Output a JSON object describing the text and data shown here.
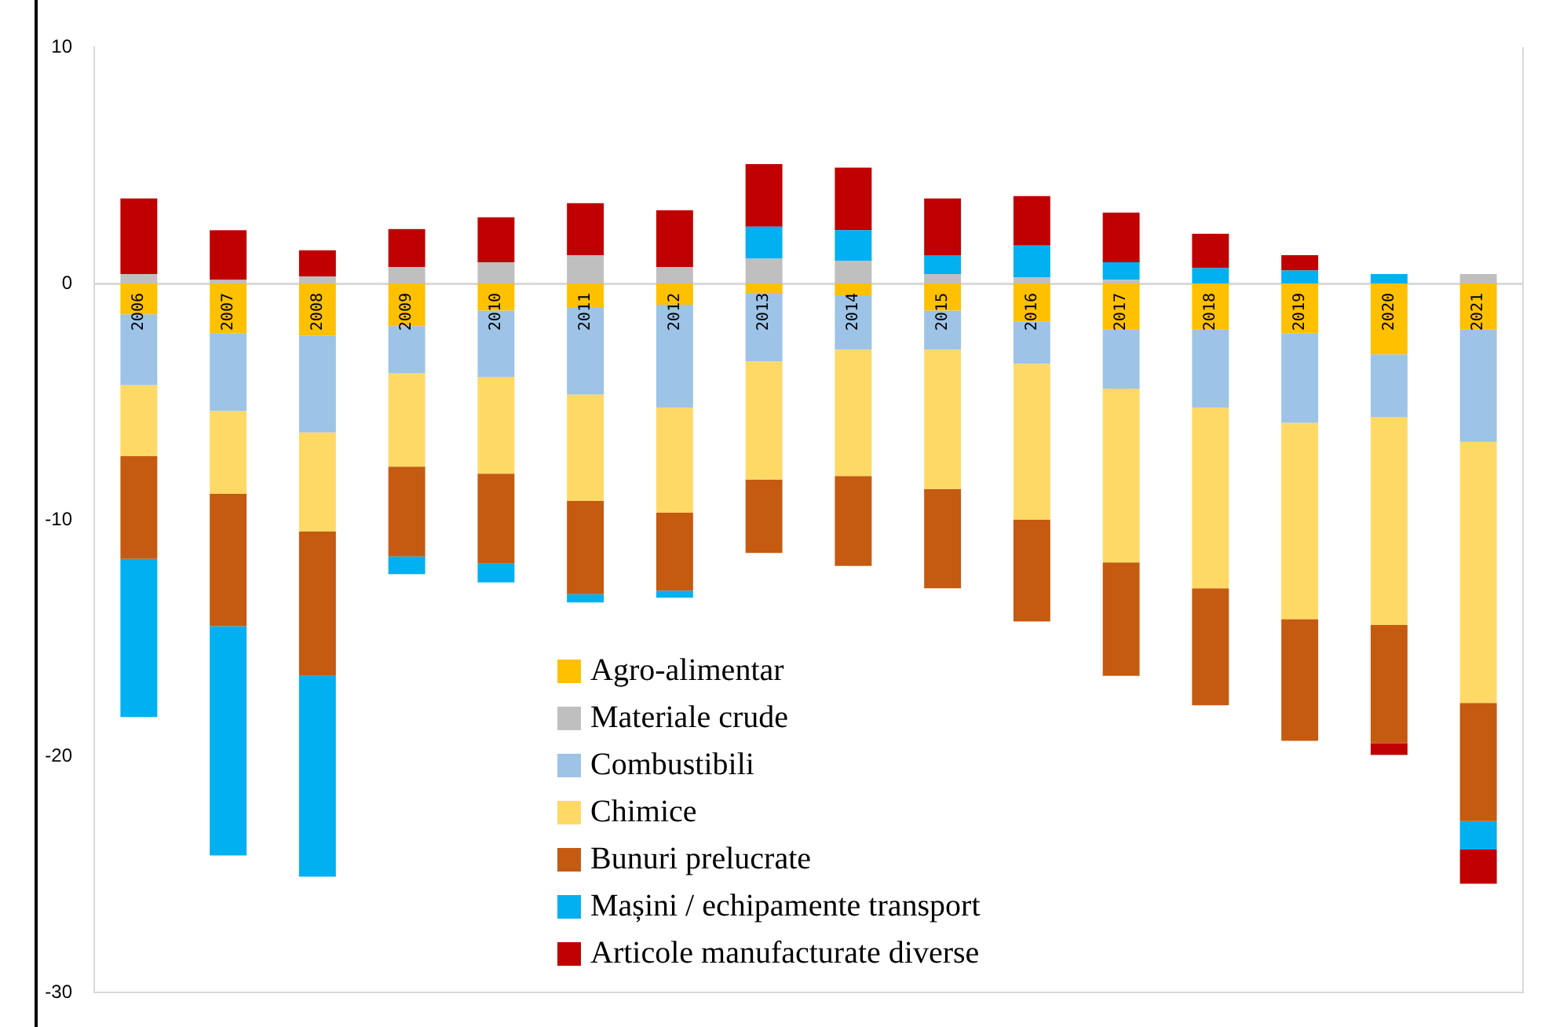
{
  "chart_data": {
    "type": "bar",
    "stacked": true,
    "grid": false,
    "legend": "bottom",
    "categories": [
      "2006",
      "2007",
      "2008",
      "2009",
      "2010",
      "2011",
      "2012",
      "2013",
      "2014",
      "2015",
      "2016",
      "2017",
      "2018",
      "2019",
      "2020",
      "2021"
    ],
    "ylim": [
      -30,
      10
    ],
    "yticks": [
      10,
      0,
      -10,
      -20,
      -30
    ],
    "series": [
      {
        "name": "Agro-alimentar",
        "color": "#ffc000",
        "values": [
          -1.3,
          -2.1,
          -2.2,
          -1.8,
          -1.15,
          -1.0,
          -0.9,
          -0.4,
          -0.5,
          -1.15,
          -1.6,
          -1.95,
          -1.95,
          -2.1,
          -3.0,
          -1.95
        ]
      },
      {
        "name": "Materiale crude",
        "color": "#bfbfbf",
        "values": [
          0.4,
          0.15,
          0.3,
          0.7,
          0.9,
          1.2,
          0.7,
          1.05,
          0.95,
          0.4,
          0.25,
          0.15,
          0,
          0,
          0,
          0.4
        ]
      },
      {
        "name": "Combustibili",
        "color": "#9dc3e6",
        "values": [
          -3.0,
          -3.3,
          -4.1,
          -2.0,
          -2.8,
          -3.7,
          -4.35,
          -2.9,
          -2.3,
          -1.65,
          -1.8,
          -2.5,
          -3.3,
          -3.8,
          -2.65,
          -4.75
        ]
      },
      {
        "name": "Chimice",
        "color": "#ffd966",
        "values": [
          -3.0,
          -3.5,
          -4.2,
          -3.95,
          -4.1,
          -4.5,
          -4.45,
          -5.0,
          -5.35,
          -5.9,
          -6.6,
          -7.35,
          -7.65,
          -8.3,
          -8.8,
          -11.05
        ]
      },
      {
        "name": "Bunuri prelucrate",
        "color": "#c55a11",
        "values": [
          -4.35,
          -5.6,
          -6.1,
          -3.8,
          -3.8,
          -3.95,
          -3.3,
          -3.1,
          -3.8,
          -4.2,
          -4.3,
          -4.8,
          -4.95,
          -5.15,
          -5.0,
          -5.0
        ]
      },
      {
        "name": "Mașini / echipamente transport",
        "color": "#00b0f0",
        "values": [
          -6.7,
          -9.7,
          -8.5,
          -0.75,
          -0.8,
          -0.35,
          -0.3,
          1.35,
          1.3,
          0.8,
          1.35,
          0.75,
          0.65,
          0.55,
          0.4,
          -1.2
        ]
      },
      {
        "name": "Articole manufacturate diverse",
        "color": "#c00000",
        "values": [
          3.2,
          2.1,
          1.1,
          1.6,
          1.9,
          2.2,
          2.4,
          2.65,
          2.65,
          2.4,
          2.1,
          2.1,
          1.45,
          0.65,
          -0.5,
          -1.45
        ]
      }
    ]
  }
}
